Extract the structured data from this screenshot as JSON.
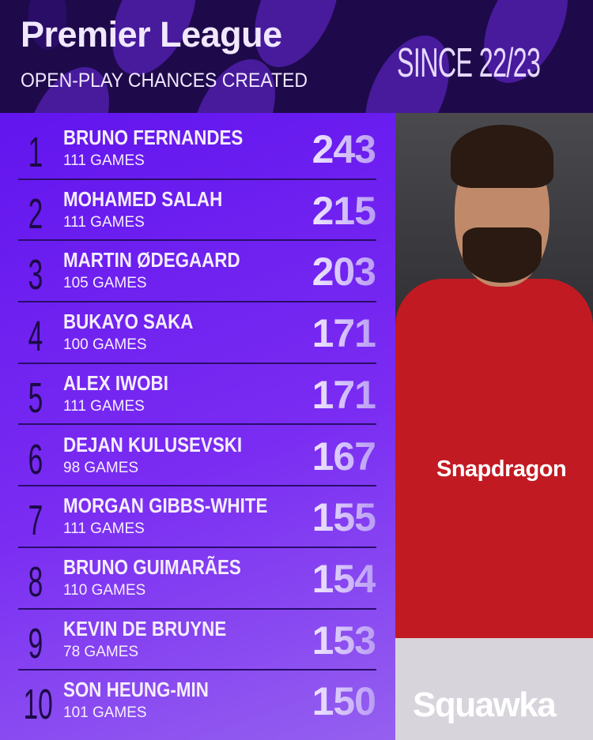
{
  "header": {
    "title": "Premier League",
    "subtitle": "OPEN-PLAY CHANCES CREATED",
    "period": "SINCE 22/23"
  },
  "rows": [
    {
      "rank": "1",
      "name": "BRUNO FERNANDES",
      "games": "111 GAMES",
      "value": "243"
    },
    {
      "rank": "2",
      "name": "MOHAMED SALAH",
      "games": "111 GAMES",
      "value": "215"
    },
    {
      "rank": "3",
      "name": "MARTIN ØDEGAARD",
      "games": "105 GAMES",
      "value": "203"
    },
    {
      "rank": "4",
      "name": "BUKAYO SAKA",
      "games": "100 GAMES",
      "value": "171"
    },
    {
      "rank": "5",
      "name": "ALEX IWOBI",
      "games": "111 GAMES",
      "value": "171"
    },
    {
      "rank": "6",
      "name": "DEJAN KULUSEVSKI",
      "games": "98 GAMES",
      "value": "167"
    },
    {
      "rank": "7",
      "name": "MORGAN GIBBS-WHITE",
      "games": "111 GAMES",
      "value": "155"
    },
    {
      "rank": "8",
      "name": "BRUNO GUIMARÃES",
      "games": "110 GAMES",
      "value": "154"
    },
    {
      "rank": "9",
      "name": "KEVIN DE BRUYNE",
      "games": "78 GAMES",
      "value": "153"
    },
    {
      "rank": "10",
      "name": "SON HEUNG-MIN",
      "games": "101 GAMES",
      "value": "150"
    }
  ],
  "photo": {
    "sponsor": "Snapdragon"
  },
  "brand": {
    "logo": "Squawka"
  },
  "colors": {
    "header_bg": "#1e0a4a",
    "panel": "#6a1cf0",
    "shirt": "#c21a22"
  }
}
